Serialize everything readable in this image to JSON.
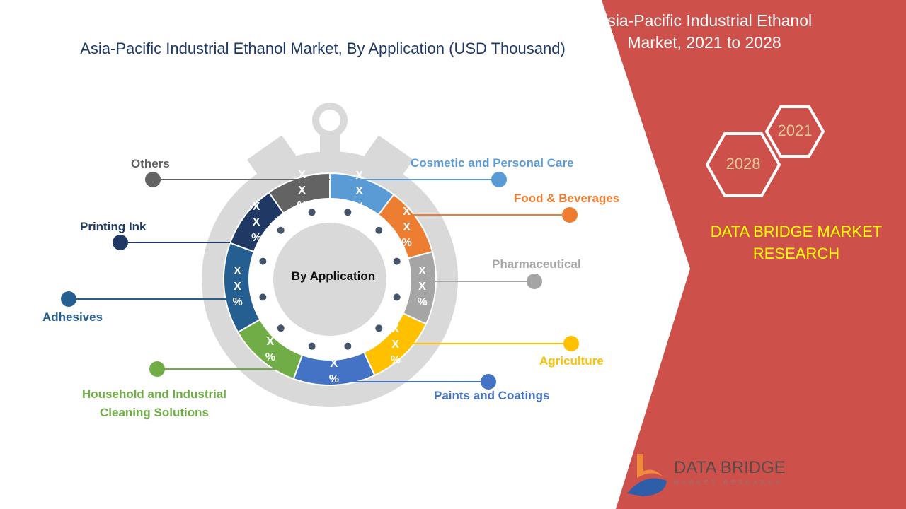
{
  "title": "Asia-Pacific Industrial Ethanol Market, By Application (USD Thousand)",
  "side_panel": {
    "title_line1": "Asia-Pacific Industrial Ethanol",
    "title_line2": "Market, 2021 to 2028",
    "year_start": "2021",
    "year_end": "2028",
    "brand_line1": "DATA BRIDGE MARKET",
    "brand_line2": "RESEARCH",
    "logo_name": "DATA BRIDGE",
    "logo_sub": "MARKET RESEARCH",
    "panel_color": "#cd504a",
    "brand_color": "#ffff00"
  },
  "chart_data": {
    "type": "pie",
    "style": "donut",
    "center_label": "By Application",
    "categories": [
      "Cosmetic and Personal Care",
      "Food & Beverages",
      "Pharmaceutical",
      "Agriculture",
      "Paints and Coatings",
      "Household and Industrial Cleaning Solutions",
      "Adhesives",
      "Printing Ink",
      "Others"
    ],
    "data_labels": [
      "XX%",
      "XX%",
      "XX%",
      "XX%",
      "X%",
      "X%",
      "XX%",
      "XX%",
      "XX%"
    ],
    "colors": [
      "#5b9bd5",
      "#ed7d31",
      "#a5a5a5",
      "#ffc000",
      "#4472c4",
      "#70ad47",
      "#255e91",
      "#1f3864",
      "#636363"
    ],
    "legend_placement": "around"
  }
}
